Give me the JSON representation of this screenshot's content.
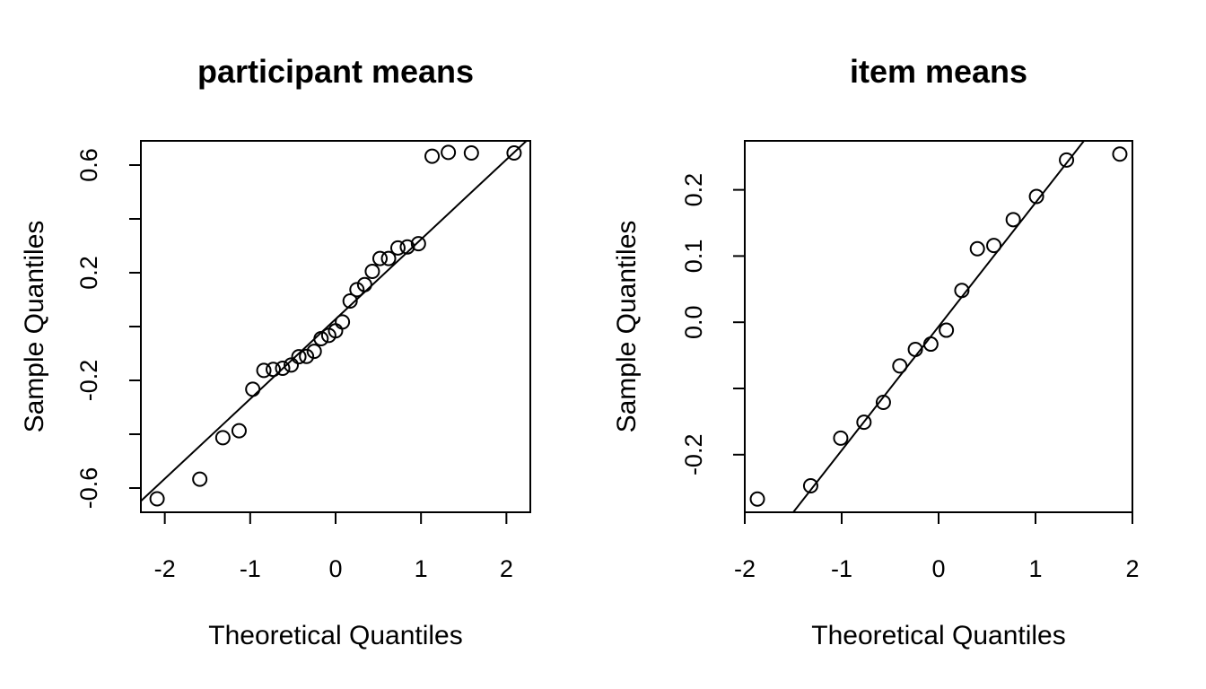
{
  "chart_data": [
    {
      "type": "scatter",
      "title": "participant means",
      "xlabel": "Theoretical Quantiles",
      "ylabel": "Sample Quantiles",
      "xlim": [
        -2.28,
        2.28
      ],
      "ylim": [
        -0.69,
        0.69
      ],
      "xticks": [
        -2,
        -1,
        0,
        1,
        2
      ],
      "xtick_labels": [
        "-2",
        "-1",
        "0",
        "1",
        "2"
      ],
      "yticks": [
        -0.6,
        -0.4,
        -0.2,
        0.0,
        0.2,
        0.4,
        0.6
      ],
      "ytick_labels": [
        "-0.6",
        "",
        "-0.2",
        "",
        "0.2",
        "",
        "0.6"
      ],
      "grid": false,
      "qq_line": {
        "x": [
          -2.1,
          2.1
        ],
        "y": [
          -0.595,
          0.65
        ]
      },
      "x": [
        -2.09,
        -1.59,
        -1.32,
        -1.13,
        -0.97,
        -0.84,
        -0.73,
        -0.62,
        -0.52,
        -0.43,
        -0.34,
        -0.25,
        -0.17,
        -0.08,
        0.0,
        0.08,
        0.17,
        0.25,
        0.34,
        0.43,
        0.52,
        0.62,
        0.73,
        0.84,
        0.97,
        1.13,
        1.32,
        1.59,
        2.09
      ],
      "y": [
        -0.64,
        -0.567,
        -0.413,
        -0.387,
        -0.233,
        -0.163,
        -0.159,
        -0.155,
        -0.143,
        -0.112,
        -0.111,
        -0.092,
        -0.045,
        -0.033,
        -0.016,
        0.017,
        0.095,
        0.137,
        0.156,
        0.205,
        0.253,
        0.253,
        0.292,
        0.296,
        0.308,
        0.633,
        0.647,
        0.645,
        0.645
      ]
    },
    {
      "type": "scatter",
      "title": "item means",
      "xlabel": "Theoretical Quantiles",
      "ylabel": "Sample Quantiles",
      "xlim": [
        -2.0,
        2.0
      ],
      "ylim": [
        -0.287,
        0.274
      ],
      "xticks": [
        -2,
        -1,
        0,
        1,
        2
      ],
      "xtick_labels": [
        "-2",
        "-1",
        "0",
        "1",
        "2"
      ],
      "yticks": [
        -0.2,
        -0.1,
        0.0,
        0.1,
        0.2
      ],
      "ytick_labels": [
        "-0.2",
        "",
        "0.0",
        "0.1",
        "0.2"
      ],
      "grid": false,
      "qq_line": {
        "x": [
          -1.5,
          1.5
        ],
        "y": [
          -0.287,
          0.274
        ]
      },
      "x": [
        -1.87,
        -1.32,
        -1.01,
        -0.77,
        -0.57,
        -0.4,
        -0.24,
        -0.08,
        0.08,
        0.24,
        0.4,
        0.57,
        0.77,
        1.01,
        1.32,
        1.87
      ],
      "y": [
        -0.267,
        -0.247,
        -0.175,
        -0.151,
        -0.121,
        -0.066,
        -0.041,
        -0.033,
        -0.012,
        0.048,
        0.111,
        0.116,
        0.155,
        0.19,
        0.245,
        0.254
      ]
    }
  ]
}
